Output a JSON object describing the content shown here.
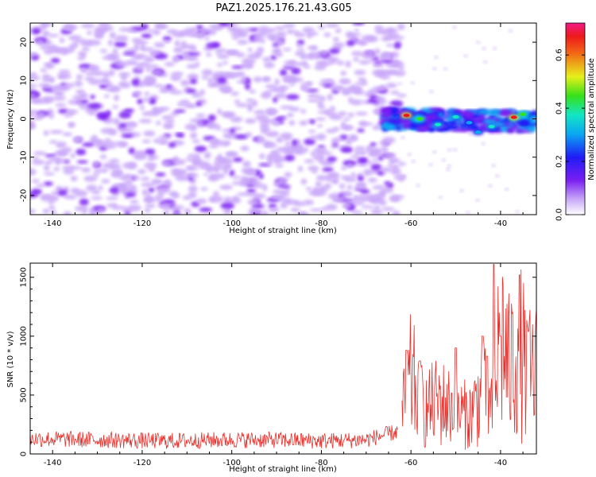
{
  "title": "PAZ1.2025.176.21.43.G05",
  "colors": {
    "snr_line": "#e8312d",
    "frame": "#000000",
    "background": "#ffffff"
  },
  "chart_data": [
    {
      "type": "heatmap",
      "name": "spectrogram",
      "xlabel": "Height of straight line (km)",
      "ylabel": "Frequency (Hz)",
      "xlim": [
        -145,
        -32
      ],
      "ylim": [
        -25,
        25
      ],
      "x_ticks": [
        "-140",
        "-120",
        "-100",
        "-80",
        "-60",
        "-40"
      ],
      "y_ticks": [
        "20",
        "10",
        "0",
        "-10",
        "-20"
      ],
      "colorbar": {
        "label": "Normalized spectral amplitude",
        "range": [
          0.0,
          0.72
        ],
        "ticks": [
          "0.0",
          "0.2",
          "0.4",
          "0.6"
        ],
        "colormap": "purple-blue-cyan-green-yellow-red-magenta"
      },
      "description_of_content": {
        "noise_region_x": [
          -145,
          -65
        ],
        "noise_amplitude": 0.1,
        "signal_band_x": [
          -66,
          -32
        ],
        "signal_band_frequency_hz": [
          -3,
          2
        ],
        "peak_amplitude": 0.72
      }
    },
    {
      "type": "line",
      "name": "snr",
      "xlabel": "Height of straight line (km)",
      "ylabel": "SNR (10 * v/v)",
      "xlim": [
        -145,
        -32
      ],
      "ylim": [
        0,
        1620
      ],
      "x_ticks": [
        "-140",
        "-120",
        "-100",
        "-80",
        "-60",
        "-40"
      ],
      "y_ticks": [
        "0",
        "500",
        "1000",
        "1500"
      ],
      "series": [
        {
          "segments": [
            {
              "x": [
                -145,
                -130,
                -115,
                -100,
                -90,
                -80,
                -70,
                -63
              ],
              "y": [
                130,
                120,
                110,
                120,
                120,
                110,
                120,
                190
              ]
            },
            {
              "x": [
                -62,
                -60,
                -57,
                -54,
                -50,
                -47,
                -44,
                -42,
                -40,
                -38,
                -36,
                -34,
                -32
              ],
              "y": [
                330,
                650,
                360,
                450,
                370,
                320,
                530,
                350,
                1050,
                700,
                930,
                660,
                700
              ]
            }
          ],
          "peaks": [
            [
              -61,
              880
            ],
            [
              -58,
              790
            ],
            [
              -50,
              900
            ],
            [
              -44,
              1000
            ],
            [
              -43,
              830
            ],
            [
              -41.5,
              1610
            ],
            [
              -40,
              1000
            ],
            [
              -35.8,
              1520
            ],
            [
              -33.8,
              1040
            ]
          ]
        }
      ]
    }
  ]
}
